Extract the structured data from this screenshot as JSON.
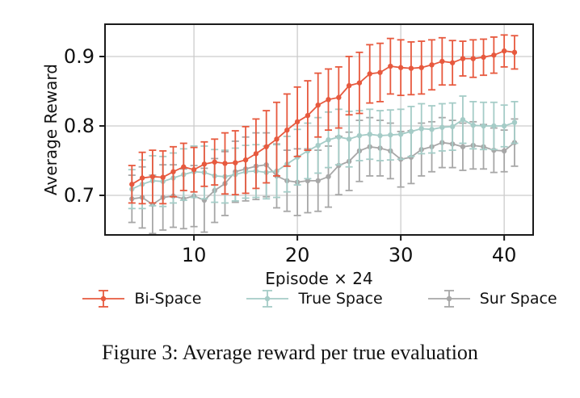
{
  "figure": {
    "caption": "Figure 3: Average reward per true evaluation"
  },
  "chart_data": {
    "type": "line",
    "title": "",
    "xlabel": "Episode × 24",
    "ylabel": "Average Reward",
    "grid": true,
    "legend_position": "below",
    "xlim": [
      1.4,
      42.8
    ],
    "ylim": [
      0.643,
      0.9465
    ],
    "x_ticks": [
      10,
      20,
      30,
      40
    ],
    "x_tick_labels": [
      "10",
      "20",
      "30",
      "40"
    ],
    "y_ticks": [
      0.7,
      0.8,
      0.9
    ],
    "y_tick_labels": [
      "0.7",
      "0.8",
      "0.9"
    ],
    "grid_color": "#cccccc",
    "spine_color": "#1a1a1a",
    "text_color": "#111111",
    "x": [
      4,
      5,
      6,
      7,
      8,
      9,
      10,
      11,
      12,
      13,
      14,
      15,
      16,
      17,
      18,
      19,
      20,
      21,
      22,
      23,
      24,
      25,
      26,
      27,
      28,
      29,
      30,
      31,
      32,
      33,
      34,
      35,
      36,
      37,
      38,
      39,
      40,
      41
    ],
    "series": [
      {
        "name": "Sur Space",
        "color": "#a7a7a7",
        "values": [
          0.695,
          0.697,
          0.687,
          0.697,
          0.699,
          0.695,
          0.699,
          0.693,
          0.707,
          0.717,
          0.734,
          0.738,
          0.742,
          0.744,
          0.728,
          0.721,
          0.719,
          0.721,
          0.721,
          0.727,
          0.743,
          0.749,
          0.764,
          0.77,
          0.768,
          0.764,
          0.752,
          0.755,
          0.766,
          0.77,
          0.776,
          0.774,
          0.77,
          0.772,
          0.77,
          0.765,
          0.764,
          0.776
        ],
        "err": [
          0.034,
          0.044,
          0.042,
          0.047,
          0.045,
          0.043,
          0.044,
          0.046,
          0.046,
          0.046,
          0.044,
          0.046,
          0.048,
          0.046,
          0.046,
          0.044,
          0.048,
          0.046,
          0.044,
          0.044,
          0.042,
          0.042,
          0.044,
          0.042,
          0.04,
          0.04,
          0.04,
          0.038,
          0.038,
          0.036,
          0.036,
          0.034,
          0.034,
          0.034,
          0.032,
          0.032,
          0.03,
          0.034
        ]
      },
      {
        "name": "True Space",
        "color": "#a5ccc7",
        "values": [
          0.709,
          0.716,
          0.721,
          0.72,
          0.725,
          0.73,
          0.734,
          0.733,
          0.728,
          0.727,
          0.73,
          0.734,
          0.735,
          0.733,
          0.735,
          0.745,
          0.755,
          0.764,
          0.772,
          0.78,
          0.784,
          0.781,
          0.786,
          0.788,
          0.786,
          0.787,
          0.788,
          0.792,
          0.796,
          0.795,
          0.798,
          0.799,
          0.809,
          0.801,
          0.8,
          0.8,
          0.8,
          0.805
        ],
        "err": [
          0.028,
          0.035,
          0.036,
          0.036,
          0.036,
          0.037,
          0.037,
          0.038,
          0.038,
          0.038,
          0.038,
          0.038,
          0.038,
          0.038,
          0.038,
          0.04,
          0.04,
          0.04,
          0.04,
          0.04,
          0.04,
          0.04,
          0.036,
          0.036,
          0.036,
          0.036,
          0.036,
          0.036,
          0.036,
          0.034,
          0.034,
          0.034,
          0.034,
          0.034,
          0.034,
          0.034,
          0.03,
          0.03
        ]
      },
      {
        "name": "Bi-Space",
        "color": "#e7593e",
        "values": [
          0.716,
          0.725,
          0.727,
          0.726,
          0.734,
          0.741,
          0.737,
          0.745,
          0.748,
          0.746,
          0.747,
          0.751,
          0.76,
          0.77,
          0.781,
          0.794,
          0.806,
          0.815,
          0.83,
          0.838,
          0.841,
          0.858,
          0.862,
          0.875,
          0.877,
          0.886,
          0.884,
          0.883,
          0.884,
          0.888,
          0.893,
          0.891,
          0.897,
          0.897,
          0.899,
          0.902,
          0.908,
          0.906
        ],
        "err": [
          0.027,
          0.037,
          0.038,
          0.038,
          0.036,
          0.034,
          0.032,
          0.032,
          0.033,
          0.044,
          0.046,
          0.048,
          0.05,
          0.052,
          0.053,
          0.052,
          0.05,
          0.05,
          0.046,
          0.044,
          0.044,
          0.042,
          0.044,
          0.042,
          0.042,
          0.04,
          0.04,
          0.038,
          0.038,
          0.036,
          0.034,
          0.032,
          0.025,
          0.027,
          0.026,
          0.026,
          0.023,
          0.024
        ]
      }
    ],
    "legend_order": [
      "Bi-Space",
      "True Space",
      "Sur Space"
    ]
  }
}
